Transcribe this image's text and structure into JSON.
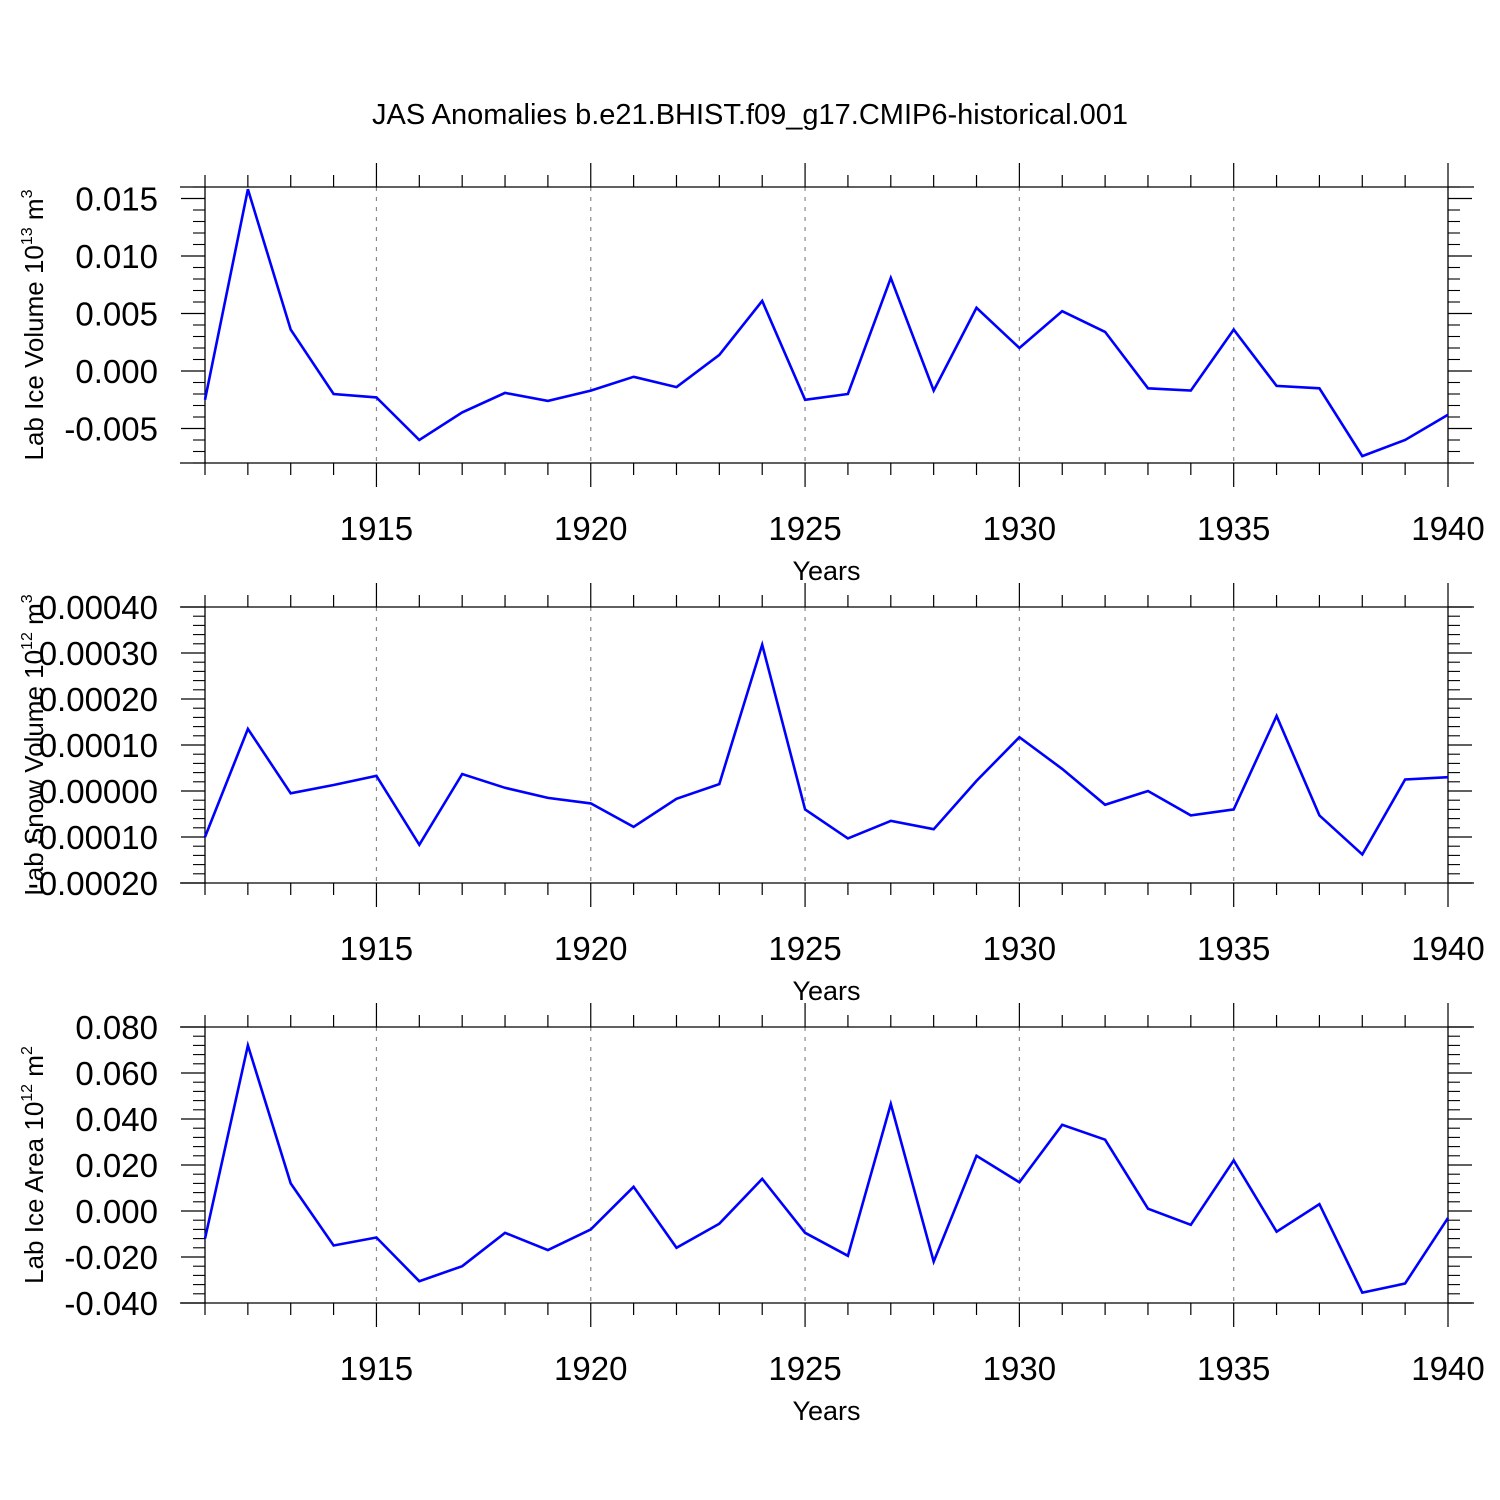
{
  "figure": {
    "title": "JAS Anomalies b.e21.BHIST.f09_g17.CMIP6-historical.001"
  },
  "colors": {
    "line": "#0000ff",
    "axes": "#000000",
    "grid": "#888888",
    "background": "#ffffff"
  },
  "chart_data": [
    {
      "type": "line",
      "title": "JAS Anomalies b.e21.BHIST.f09_g17.CMIP6-historical.001",
      "xlabel": "Years",
      "ylabel": {
        "base": "Lab Ice Volume 10",
        "exp1": "13",
        "mid": " m",
        "exp2": "3"
      },
      "xlim": [
        1911,
        1940
      ],
      "ylim": [
        -0.008,
        0.016
      ],
      "xticks": [
        1915,
        1920,
        1925,
        1930,
        1935,
        1940
      ],
      "yticks": [
        -0.005,
        0.0,
        0.005,
        0.01,
        0.015
      ],
      "ytick_labels": [
        "-0.005",
        "0.000",
        "0.005",
        "0.010",
        "0.015"
      ],
      "x": [
        1911,
        1912,
        1913,
        1914,
        1915,
        1916,
        1917,
        1918,
        1919,
        1920,
        1921,
        1922,
        1923,
        1924,
        1925,
        1926,
        1927,
        1928,
        1929,
        1930,
        1931,
        1932,
        1933,
        1934,
        1935,
        1936,
        1937,
        1938,
        1939,
        1940
      ],
      "series": [
        {
          "name": "Lab Ice Volume",
          "values": [
            -0.0025,
            0.0158,
            0.0036,
            -0.002,
            -0.0023,
            -0.006,
            -0.0036,
            -0.0019,
            -0.0026,
            -0.0017,
            -0.0005,
            -0.0014,
            0.0014,
            0.0061,
            -0.0025,
            -0.002,
            0.0081,
            -0.0017,
            0.0055,
            0.002,
            0.0052,
            0.0034,
            -0.0015,
            -0.0017,
            0.0036,
            -0.0013,
            -0.0015,
            -0.0074,
            -0.006,
            -0.0038
          ]
        }
      ]
    },
    {
      "type": "line",
      "xlabel": "Years",
      "ylabel": {
        "base": "Lab Snow Volume 10",
        "exp1": "12",
        "mid": " m",
        "exp2": "3"
      },
      "xlim": [
        1911,
        1940
      ],
      "ylim": [
        -0.0002,
        0.0004
      ],
      "xticks": [
        1915,
        1920,
        1925,
        1930,
        1935,
        1940
      ],
      "yticks": [
        -0.0002,
        -0.0001,
        0.0,
        0.0001,
        0.0002,
        0.0003,
        0.0004
      ],
      "ytick_labels": [
        "-0.00020",
        "-0.00010",
        "0.00000",
        "0.00010",
        "0.00020",
        "0.00030",
        "0.00040"
      ],
      "x": [
        1911,
        1912,
        1913,
        1914,
        1915,
        1916,
        1917,
        1918,
        1919,
        1920,
        1921,
        1922,
        1923,
        1924,
        1925,
        1926,
        1927,
        1928,
        1929,
        1930,
        1931,
        1932,
        1933,
        1934,
        1935,
        1936,
        1937,
        1938,
        1939,
        1940
      ],
      "series": [
        {
          "name": "Lab Snow Volume",
          "values": [
            -0.0001,
            0.000135,
            -5e-06,
            1.3e-05,
            3.3e-05,
            -0.000117,
            3.7e-05,
            7e-06,
            -1.5e-05,
            -2.7e-05,
            -7.8e-05,
            -1.7e-05,
            1.5e-05,
            0.000318,
            -4e-05,
            -0.000103,
            -6.5e-05,
            -8.3e-05,
            2.2e-05,
            0.000117,
            4.8e-05,
            -3e-05,
            0.0,
            -5.3e-05,
            -4e-05,
            0.000163,
            -5.3e-05,
            -0.000138,
            2.5e-05,
            3e-05
          ]
        }
      ]
    },
    {
      "type": "line",
      "xlabel": "Years",
      "ylabel": {
        "base": "Lab Ice Area 10",
        "exp1": "12",
        "mid": " m",
        "exp2": "2"
      },
      "xlim": [
        1911,
        1940
      ],
      "ylim": [
        -0.04,
        0.08
      ],
      "xticks": [
        1915,
        1920,
        1925,
        1930,
        1935,
        1940
      ],
      "yticks": [
        -0.04,
        -0.02,
        0.0,
        0.02,
        0.04,
        0.06,
        0.08
      ],
      "ytick_labels": [
        "-0.040",
        "-0.020",
        "0.000",
        "0.020",
        "0.040",
        "0.060",
        "0.080"
      ],
      "x": [
        1911,
        1912,
        1913,
        1914,
        1915,
        1916,
        1917,
        1918,
        1919,
        1920,
        1921,
        1922,
        1923,
        1924,
        1925,
        1926,
        1927,
        1928,
        1929,
        1930,
        1931,
        1932,
        1933,
        1934,
        1935,
        1936,
        1937,
        1938,
        1939,
        1940
      ],
      "series": [
        {
          "name": "Lab Ice Area",
          "values": [
            -0.012,
            0.072,
            0.012,
            -0.015,
            -0.0115,
            -0.0305,
            -0.024,
            -0.0095,
            -0.017,
            -0.008,
            0.0105,
            -0.016,
            -0.0055,
            0.014,
            -0.0095,
            -0.0195,
            0.0465,
            -0.022,
            0.024,
            0.0125,
            0.0375,
            0.031,
            0.001,
            -0.006,
            0.022,
            -0.009,
            0.003,
            -0.0355,
            -0.0315,
            -0.003
          ]
        }
      ]
    }
  ]
}
